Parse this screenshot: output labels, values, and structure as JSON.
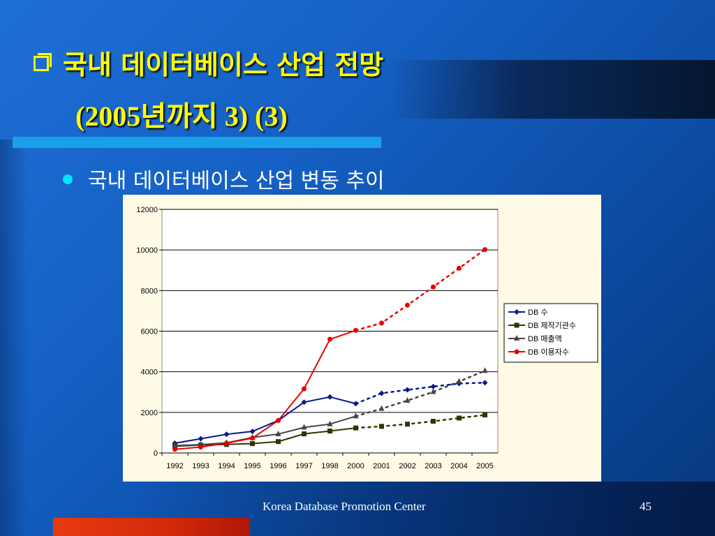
{
  "slide": {
    "title_line1": "국내 데이터베이스 산업 전망",
    "title_line2": "(2005년까지 3) (3)",
    "bullet": "국내 데이터베이스 산업 변동 추이",
    "footer": "Korea Database Promotion Center",
    "page_number": "45",
    "colors": {
      "title": "#ffff00",
      "bullet": "#00e8ff",
      "accent_bar": "#1aa0e8",
      "footer_strip": "#e83a10"
    }
  },
  "chart_data": {
    "type": "line",
    "categories": [
      "1992",
      "1993",
      "1994",
      "1995",
      "1996",
      "1997",
      "1998",
      "2000",
      "2001",
      "2002",
      "2003",
      "2004",
      "2005"
    ],
    "ylim": [
      0,
      12000
    ],
    "yticks": [
      0,
      2000,
      4000,
      6000,
      8000,
      10000,
      12000
    ],
    "grid": true,
    "legend_position": "right",
    "solid_until_index": 7,
    "note": "values from 2000 onward drawn as dotted forecast",
    "series": [
      {
        "name": "DB 수",
        "color": "#0a1a8c",
        "marker": "diamond",
        "values": [
          480,
          700,
          920,
          1060,
          1600,
          2500,
          2760,
          2430,
          2940,
          3110,
          3270,
          3420,
          3460
        ]
      },
      {
        "name": "DB 제작기관수",
        "color": "#333300",
        "marker": "square",
        "values": [
          330,
          390,
          420,
          460,
          560,
          940,
          1080,
          1230,
          1310,
          1420,
          1560,
          1720,
          1870
        ]
      },
      {
        "name": "DB 매출액",
        "color": "#444444",
        "marker": "triangle",
        "values": [
          360,
          410,
          500,
          760,
          930,
          1260,
          1420,
          1810,
          2180,
          2580,
          3010,
          3520,
          4050
        ]
      },
      {
        "name": "DB 이용자수",
        "color": "#e80000",
        "marker": "circle",
        "values": [
          180,
          290,
          480,
          730,
          1600,
          3160,
          5600,
          6040,
          6400,
          7280,
          8180,
          9100,
          10020
        ]
      }
    ]
  }
}
